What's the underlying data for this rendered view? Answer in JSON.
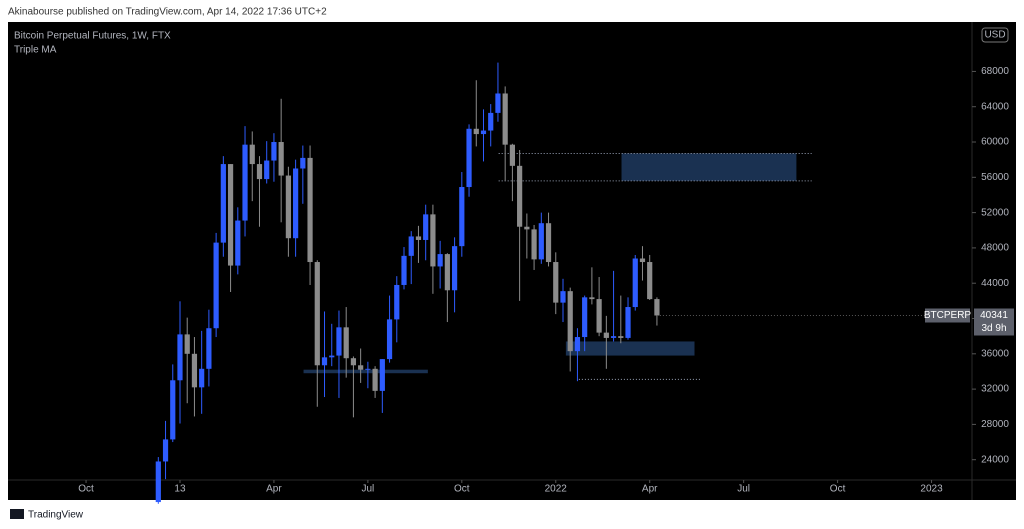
{
  "header": {
    "publisher": "Akinabourse published on TradingView.com, Apr 14, 2022 17:36 UTC+2"
  },
  "footer": {
    "logo": "TradingView"
  },
  "chart_data": {
    "type": "candlestick",
    "title": "Bitcoin Perpetual Futures, 1W, FTX",
    "indicator": "Triple MA",
    "currency": "USD",
    "symbol": "BTCPERP",
    "countdown": "3d 9h",
    "up_color": "#2e5cff",
    "down_color": "#8c8c8c",
    "x": [
      10,
      11,
      12,
      13,
      14,
      15,
      16,
      17,
      18,
      19,
      20,
      21,
      22,
      23,
      24,
      25,
      26,
      27,
      28,
      29,
      30,
      31,
      32,
      33,
      34,
      35,
      36,
      37,
      38,
      39,
      40,
      41,
      42,
      43,
      44,
      45,
      46,
      47,
      48,
      49,
      50,
      51,
      52,
      53,
      54,
      55,
      56,
      57,
      58,
      59,
      60,
      61,
      62,
      63,
      64,
      65,
      66,
      67,
      68,
      69,
      70,
      71,
      72,
      73,
      74,
      75,
      76,
      77,
      78,
      79
    ],
    "open": [
      19200,
      23800,
      26300,
      33000,
      38200,
      36000,
      32200,
      34300,
      38900,
      48600,
      57500,
      46000,
      51100,
      59700,
      57500,
      55800,
      57900,
      60000,
      56200,
      49100,
      57000,
      58200,
      46400,
      34700,
      35600,
      35800,
      39000,
      35500,
      34700,
      34200,
      34300,
      31800,
      35400,
      39900,
      43800,
      47100,
      49300,
      48900,
      51800,
      45900,
      47300,
      43200,
      48200,
      54900,
      61500,
      60900,
      61300,
      63300,
      65500,
      59700,
      57300,
      50400,
      50100,
      46700,
      50800,
      46400,
      41800,
      43100,
      36300,
      37900,
      42400,
      42200,
      38400,
      37800,
      38000,
      37800,
      41300,
      46800,
      46400,
      42200
    ],
    "high": [
      24300,
      28400,
      34800,
      41950,
      40100,
      37900,
      38600,
      41000,
      49700,
      58400,
      57500,
      52600,
      61800,
      61200,
      58400,
      60100,
      61000,
      64900,
      57200,
      58000,
      59600,
      59600,
      46600,
      40800,
      39400,
      40900,
      41300,
      35700,
      36600,
      35100,
      34600,
      35400,
      42600,
      44800,
      48100,
      49900,
      50500,
      52900,
      52900,
      48800,
      47400,
      49200,
      56600,
      62000,
      67000,
      63700,
      64300,
      69000,
      66300,
      59800,
      59100,
      51900,
      50600,
      52000,
      52000,
      47500,
      44500,
      43500,
      38900,
      42600,
      45800,
      44700,
      40300,
      45400,
      42600,
      42400,
      47200,
      48200,
      47200,
      42400
    ],
    "low": [
      19000,
      21800,
      26000,
      28100,
      30400,
      28900,
      29200,
      32300,
      37900,
      47000,
      43000,
      45000,
      49300,
      53300,
      50400,
      55300,
      55500,
      50900,
      47000,
      47000,
      53000,
      43800,
      30000,
      31100,
      34600,
      31000,
      33300,
      28800,
      32700,
      32100,
      31000,
      29300,
      35000,
      37300,
      43300,
      43900,
      46300,
      46600,
      42800,
      43400,
      39600,
      40700,
      47000,
      53800,
      59500,
      57800,
      59500,
      62300,
      55600,
      53300,
      42000,
      46800,
      45500,
      46200,
      45900,
      40500,
      39600,
      34000,
      32900,
      36300,
      41600,
      38000,
      34300,
      37400,
      37200,
      37600,
      40900,
      44300,
      42100,
      39200
    ],
    "close": [
      23800,
      26300,
      33000,
      38200,
      36000,
      32200,
      34300,
      38900,
      48600,
      57500,
      46000,
      51100,
      59700,
      57500,
      55800,
      57900,
      60000,
      56200,
      49100,
      57000,
      58200,
      46400,
      34700,
      35600,
      35800,
      39000,
      35500,
      34700,
      34200,
      34300,
      31800,
      35400,
      39900,
      43800,
      47100,
      49300,
      48900,
      51800,
      45900,
      47300,
      43200,
      48200,
      54900,
      61500,
      60900,
      61300,
      63300,
      65500,
      59700,
      57300,
      50400,
      50100,
      46700,
      50800,
      46400,
      41800,
      43100,
      36300,
      37900,
      42400,
      42200,
      38400,
      37800,
      38000,
      37800,
      41300,
      46800,
      46400,
      42200,
      40341
    ],
    "zones": [
      {
        "x": [
          74.1,
          98.3
        ],
        "y": [
          55600,
          58700
        ]
      },
      {
        "x": [
          66.4,
          84.2
        ],
        "y": [
          35800,
          37400
        ]
      },
      {
        "x": [
          30.1,
          47.3
        ],
        "y": [
          33800,
          34200
        ]
      }
    ],
    "levels": [
      {
        "x": [
          57.1,
          100.4
        ],
        "y": 58700
      },
      {
        "x": [
          57.1,
          100.4
        ],
        "y": 55600
      },
      {
        "x": [
          68.2,
          85.2
        ],
        "y": 33100
      }
    ],
    "xlim": [
      -10.8,
      122.6
    ],
    "xticks": [
      {
        "value": 0,
        "label": "Oct"
      },
      13,
      {
        "value": 26,
        "label": "Apr"
      },
      {
        "value": 39,
        "label": "Jul"
      },
      {
        "value": 52,
        "label": "Oct"
      },
      {
        "value": 65,
        "label": "2022"
      },
      {
        "value": 78,
        "label": "Apr"
      },
      {
        "value": 91,
        "label": "Jul"
      },
      {
        "value": 104,
        "label": "Oct"
      },
      {
        "value": 117,
        "label": "2023"
      }
    ],
    "ylim": [
      21700,
      73600
    ],
    "yticks": [
      24000,
      28000,
      32000,
      36000,
      40000,
      44000,
      48000,
      52000,
      56000,
      60000,
      64000,
      68000
    ]
  }
}
